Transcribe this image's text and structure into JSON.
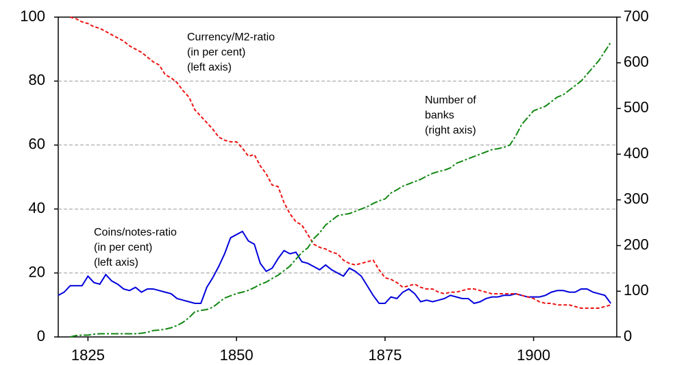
{
  "chart_data": {
    "type": "line",
    "x": [
      1820,
      1821,
      1822,
      1823,
      1824,
      1825,
      1826,
      1827,
      1828,
      1829,
      1830,
      1831,
      1832,
      1833,
      1834,
      1835,
      1836,
      1837,
      1838,
      1839,
      1840,
      1841,
      1842,
      1843,
      1844,
      1845,
      1846,
      1847,
      1848,
      1849,
      1850,
      1851,
      1852,
      1853,
      1854,
      1855,
      1856,
      1857,
      1858,
      1859,
      1860,
      1861,
      1862,
      1863,
      1864,
      1865,
      1866,
      1867,
      1868,
      1869,
      1870,
      1871,
      1872,
      1873,
      1874,
      1875,
      1876,
      1877,
      1878,
      1879,
      1880,
      1881,
      1882,
      1883,
      1884,
      1885,
      1886,
      1887,
      1888,
      1889,
      1890,
      1891,
      1892,
      1893,
      1894,
      1895,
      1896,
      1897,
      1898,
      1899,
      1900,
      1901,
      1902,
      1903,
      1904,
      1905,
      1906,
      1907,
      1908,
      1909,
      1910,
      1911,
      1912,
      1913
    ],
    "series": [
      {
        "color": "#0000dd",
        "dash": "solid",
        "values": [
          13,
          14,
          16,
          16,
          16,
          19,
          17,
          16.5,
          19.5,
          17.5,
          16.5,
          15,
          14.5,
          15.5,
          14,
          15,
          15,
          14.5,
          14,
          13.5,
          12,
          11.5,
          11,
          10.5,
          10.5,
          15.5,
          18.5,
          22,
          26,
          31,
          32,
          33,
          30,
          29,
          23,
          20.5,
          21.5,
          24.5,
          27,
          26,
          26.5,
          23.5,
          23,
          22,
          21,
          22.5,
          21,
          20,
          19,
          21.5,
          20.5,
          19,
          16,
          13,
          10.5,
          10.5,
          12.5,
          12,
          14,
          15,
          13.5,
          11,
          11.5,
          11,
          11.5,
          12,
          13,
          12.5,
          12,
          12,
          10.5,
          11,
          12,
          12.5,
          12.5,
          13,
          13,
          13.5,
          13,
          12.5,
          12.5,
          12.5,
          13,
          14,
          14.5,
          14.5,
          14,
          14,
          15,
          15,
          14,
          13.5,
          13,
          10.5
        ]
      },
      {
        "color": "#ee1111",
        "dash": "dashed",
        "values": [
          null,
          null,
          100,
          99.5,
          98.5,
          98,
          97,
          96.5,
          95.5,
          94.5,
          93.5,
          92.5,
          91,
          90,
          89,
          87.5,
          86,
          85,
          82,
          81,
          79.5,
          77,
          75,
          71,
          69,
          67,
          65,
          62.5,
          61.5,
          61,
          61,
          59,
          56.5,
          57,
          53.5,
          51,
          47.5,
          47,
          42,
          38.5,
          36,
          35,
          32,
          29,
          28,
          27.5,
          26.5,
          26,
          24,
          23,
          22.5,
          23,
          23.5,
          24,
          21,
          18.5,
          18,
          17,
          15.5,
          16,
          16.5,
          15.5,
          15,
          15,
          14,
          13.5,
          14,
          14,
          14.5,
          15,
          15,
          14.5,
          14,
          13.5,
          13.5,
          13.5,
          13.5,
          13.5,
          13,
          12.5,
          12,
          11,
          10.5,
          10.5,
          10,
          10,
          10,
          9.5,
          9,
          9,
          9,
          9,
          9.5,
          10
        ]
      },
      {
        "color": "#118811",
        "dash": "dashdot",
        "axis": "y2",
        "values": [
          null,
          null,
          0,
          3,
          4,
          4,
          6,
          7,
          7,
          7,
          7,
          7,
          7,
          7,
          8,
          10,
          14,
          15,
          17,
          20,
          25,
          32,
          42,
          55,
          58,
          60,
          65,
          75,
          85,
          90,
          95,
          98,
          102,
          108,
          115,
          120,
          128,
          135,
          145,
          155,
          170,
          185,
          195,
          215,
          228,
          245,
          255,
          265,
          268,
          270,
          275,
          280,
          285,
          292,
          298,
          302,
          315,
          322,
          330,
          335,
          340,
          345,
          352,
          358,
          362,
          365,
          370,
          380,
          385,
          390,
          395,
          400,
          405,
          410,
          412,
          415,
          420,
          440,
          465,
          480,
          495,
          500,
          505,
          515,
          525,
          530,
          540,
          550,
          560,
          575,
          590,
          605,
          625,
          645
        ]
      }
    ],
    "annotations": [
      [
        "Currency/M2-ratio",
        "(in per cent)",
        "(left axis)"
      ],
      [
        "Number of",
        "banks",
        "(right axis)"
      ],
      [
        "Coins/notes-ratio",
        "(in per cent)",
        "(left axis)"
      ]
    ],
    "xlim": [
      1820,
      1914
    ],
    "xticks": [
      1825,
      1850,
      1875,
      1900
    ],
    "ylim": [
      0,
      100
    ],
    "yticks": [
      0,
      20,
      40,
      60,
      80,
      100
    ],
    "y2lim": [
      0,
      700
    ],
    "y2ticks": [
      0,
      100,
      200,
      300,
      400,
      500,
      600,
      700
    ],
    "grid": true
  }
}
